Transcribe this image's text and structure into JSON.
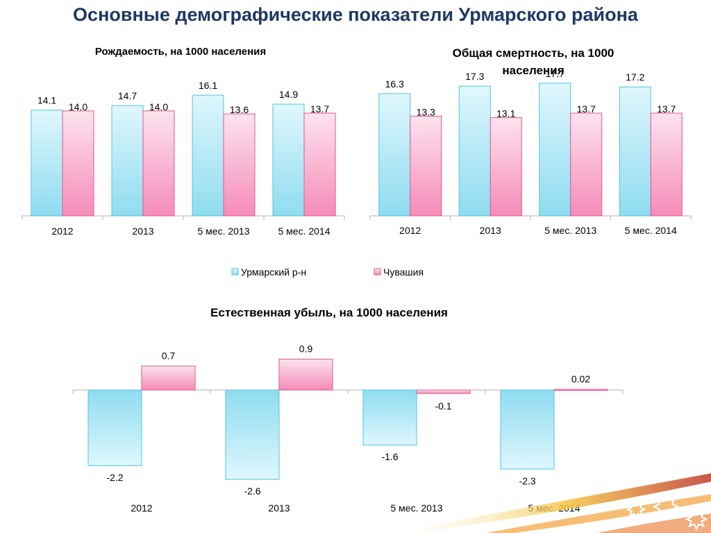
{
  "slide": {
    "title": "Основные демографические показатели Урмарского района"
  },
  "legend": {
    "items": [
      {
        "label": "Урмарский р-н",
        "color": "#9fe4f4"
      },
      {
        "label": "Чувашия",
        "color": "#f9a8c8"
      }
    ]
  },
  "colors": {
    "series1_fill_top": "#dff7fd",
    "series1_fill_bottom": "#8fdcf0",
    "series1_stroke": "#4fc3e0",
    "series2_fill_top": "#fde3ee",
    "series2_fill_bottom": "#f58cb8",
    "series2_stroke": "#e0548f",
    "axis": "#b0b0b0"
  },
  "chart_data": [
    {
      "type": "bar",
      "title": "Рождаемость, на 1000 населения",
      "categories": [
        "2012",
        "2013",
        "5 мес. 2013",
        "5 мес.  2014"
      ],
      "series": [
        {
          "name": "Урмарский р-н",
          "values": [
            14.1,
            14.7,
            16.1,
            14.9
          ],
          "labels": [
            "14.1",
            "14.7",
            "16.1",
            "14.9"
          ]
        },
        {
          "name": "Чувашия",
          "values": [
            14.0,
            14.0,
            13.6,
            13.7
          ],
          "labels": [
            "14.0",
            "14.0",
            "13.6",
            "13.7"
          ]
        }
      ]
    },
    {
      "type": "bar",
      "title": [
        "Общая смертность, на 1000",
        "населения"
      ],
      "categories": [
        "2012",
        "2013",
        "5 мес. 2013",
        "5 мес. 2014"
      ],
      "series": [
        {
          "name": "Урмарский р-н",
          "values": [
            16.3,
            17.3,
            17.7,
            17.2
          ],
          "labels": [
            "16.3",
            "17.3",
            "17.7",
            "17.2"
          ]
        },
        {
          "name": "Чувашия",
          "values": [
            13.3,
            13.1,
            13.7,
            13.7
          ],
          "labels": [
            "13.3",
            "13.1",
            "13.7",
            "13.7"
          ]
        }
      ]
    },
    {
      "type": "bar",
      "title": "Естественная убыль, на 1000 населения",
      "categories": [
        "2012",
        "2013",
        "5 мес. 2013",
        "5 мес. 2014"
      ],
      "series": [
        {
          "name": "Урмарский р-н",
          "values": [
            -2.2,
            -2.6,
            -1.6,
            -2.3
          ],
          "labels": [
            "-2.2",
            "-2.6",
            "-1.6",
            "-2.3"
          ]
        },
        {
          "name": "Чувашия",
          "values": [
            0.7,
            0.9,
            -0.1,
            0.02
          ],
          "labels": [
            "0.7",
            "0.9",
            "-0.1",
            "0.02"
          ]
        }
      ]
    }
  ]
}
